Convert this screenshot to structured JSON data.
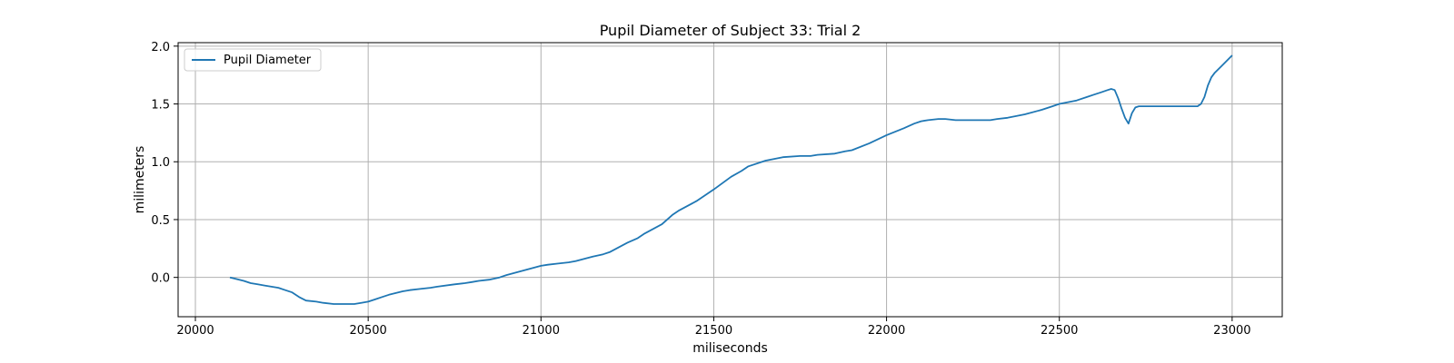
{
  "chart_data": {
    "type": "line",
    "title": "Pupil Diameter of Subject 33: Trial 2",
    "xlabel": "miliseconds",
    "ylabel": "milimeters",
    "xlim": [
      19950,
      23145
    ],
    "ylim": [
      -0.34,
      2.03
    ],
    "xticks": [
      20000,
      20500,
      21000,
      21500,
      22000,
      22500,
      23000
    ],
    "yticks": [
      0.0,
      0.5,
      1.0,
      1.5,
      2.0
    ],
    "ytick_labels": [
      "0.0",
      "0.5",
      "1.0",
      "1.5",
      "2.0"
    ],
    "grid": true,
    "legend_position": "upper-left",
    "series": [
      {
        "name": "Pupil Diameter",
        "color": "#1f77b4",
        "x": [
          20100,
          20140,
          20160,
          20180,
          20200,
          20240,
          20260,
          20280,
          20300,
          20320,
          20350,
          20370,
          20400,
          20430,
          20460,
          20480,
          20500,
          20520,
          20540,
          20560,
          20600,
          20620,
          20650,
          20680,
          20700,
          20750,
          20780,
          20800,
          20820,
          20850,
          20880,
          20900,
          20950,
          21000,
          21020,
          21050,
          21080,
          21100,
          21150,
          21180,
          21200,
          21250,
          21280,
          21300,
          21350,
          21380,
          21400,
          21450,
          21500,
          21550,
          21580,
          21600,
          21650,
          21700,
          21750,
          21780,
          21800,
          21850,
          21880,
          21900,
          21950,
          22000,
          22050,
          22080,
          22100,
          22120,
          22150,
          22170,
          22200,
          22250,
          22300,
          22320,
          22350,
          22400,
          22450,
          22480,
          22500,
          22550,
          22580,
          22600,
          22620,
          22640,
          22650,
          22660,
          22670,
          22680,
          22690,
          22700,
          22710,
          22720,
          22730,
          22750,
          22800,
          22850,
          22880,
          22900,
          22910,
          22920,
          22930,
          22940,
          22950,
          22970,
          23000
        ],
        "y": [
          0.0,
          -0.03,
          -0.05,
          -0.06,
          -0.07,
          -0.09,
          -0.11,
          -0.13,
          -0.17,
          -0.2,
          -0.21,
          -0.22,
          -0.23,
          -0.23,
          -0.23,
          -0.22,
          -0.21,
          -0.19,
          -0.17,
          -0.15,
          -0.12,
          -0.11,
          -0.1,
          -0.09,
          -0.08,
          -0.06,
          -0.05,
          -0.04,
          -0.03,
          -0.02,
          0.0,
          0.02,
          0.06,
          0.1,
          0.11,
          0.12,
          0.13,
          0.14,
          0.18,
          0.2,
          0.22,
          0.3,
          0.34,
          0.38,
          0.46,
          0.54,
          0.58,
          0.66,
          0.76,
          0.87,
          0.92,
          0.96,
          1.01,
          1.04,
          1.05,
          1.05,
          1.06,
          1.07,
          1.09,
          1.1,
          1.16,
          1.23,
          1.29,
          1.33,
          1.35,
          1.36,
          1.37,
          1.37,
          1.36,
          1.36,
          1.36,
          1.37,
          1.38,
          1.41,
          1.45,
          1.48,
          1.5,
          1.53,
          1.56,
          1.58,
          1.6,
          1.62,
          1.63,
          1.62,
          1.55,
          1.46,
          1.38,
          1.33,
          1.42,
          1.47,
          1.48,
          1.48,
          1.48,
          1.48,
          1.48,
          1.48,
          1.5,
          1.56,
          1.66,
          1.73,
          1.77,
          1.83,
          1.92
        ]
      }
    ]
  }
}
